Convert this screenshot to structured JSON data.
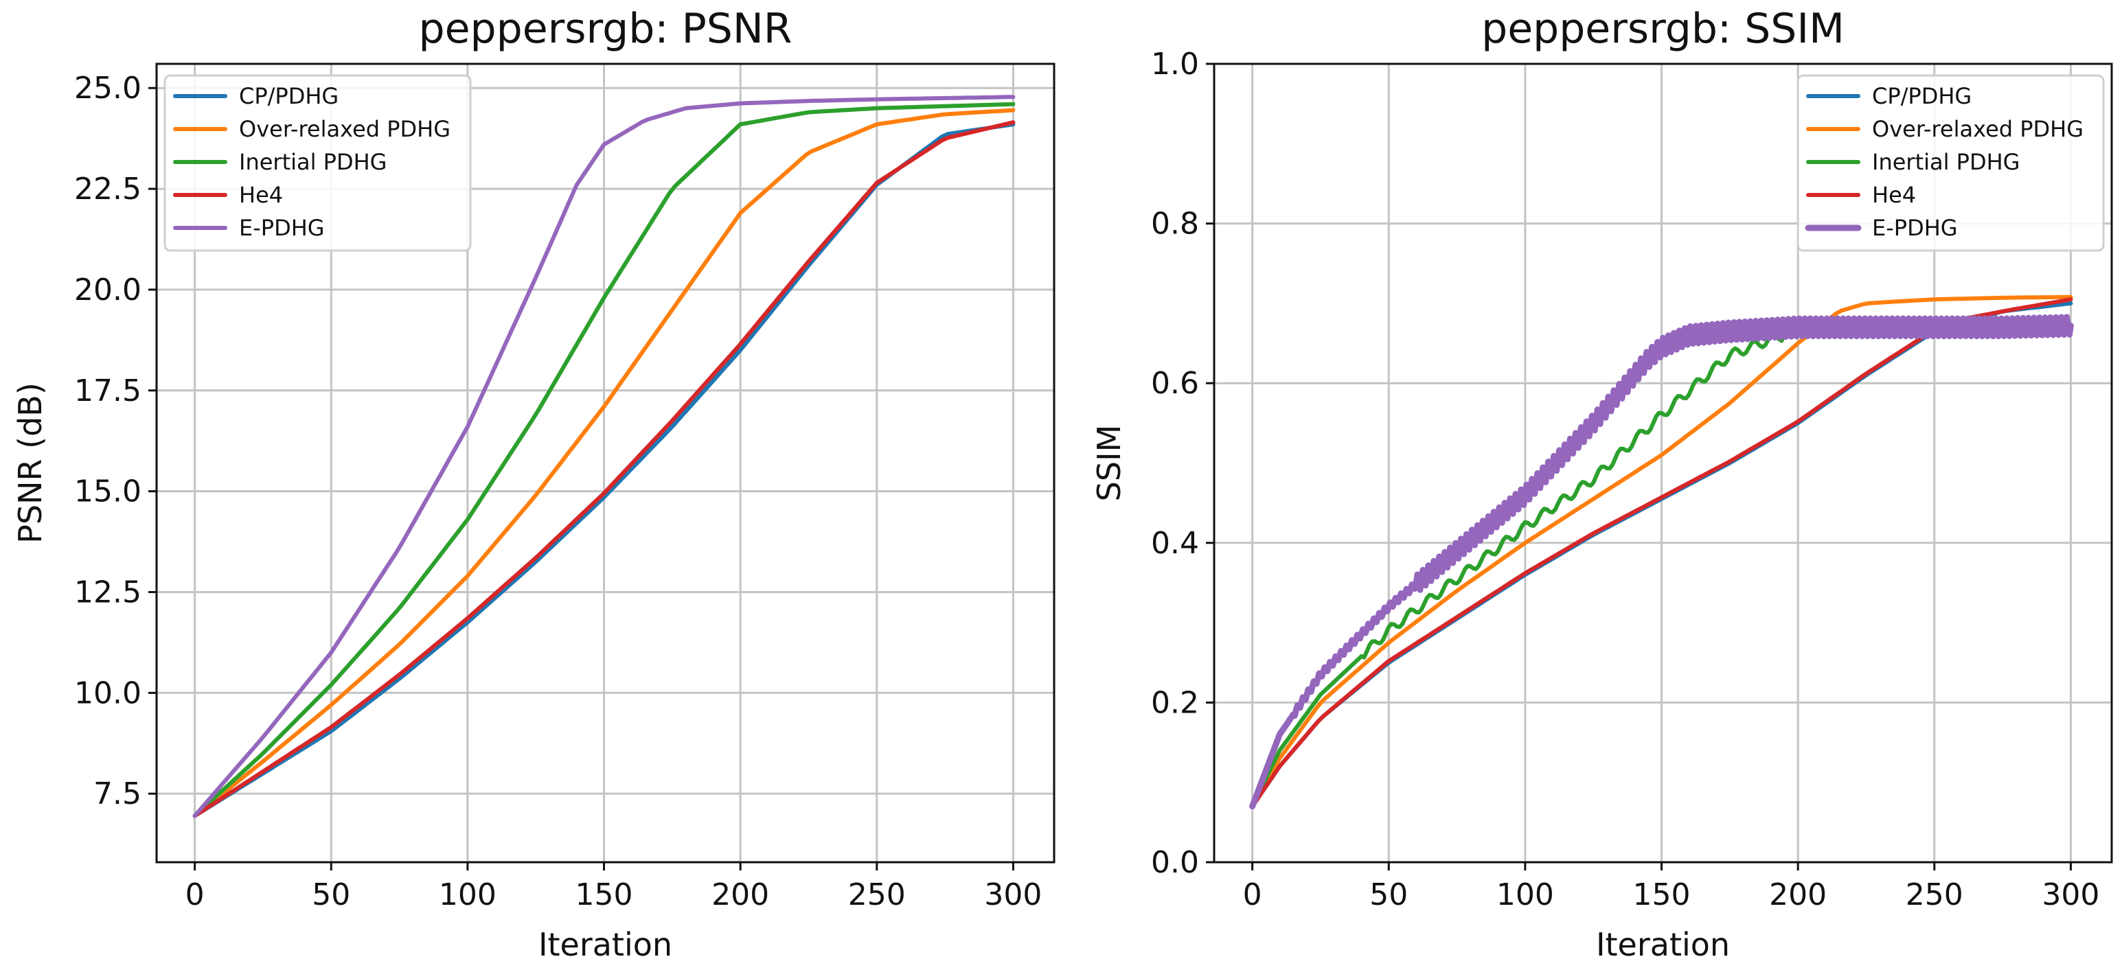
{
  "chart_data": [
    {
      "type": "line",
      "title": "peppersrgb: PSNR",
      "xlabel": "Iteration",
      "ylabel": "PSNR (dB)",
      "xlim": [
        -14,
        315
      ],
      "ylim": [
        5.8,
        25.6
      ],
      "xticks": [
        0,
        50,
        100,
        150,
        200,
        250,
        300
      ],
      "xtick_labels": [
        "0",
        "50",
        "100",
        "150",
        "200",
        "250",
        "300"
      ],
      "yticks": [
        7.5,
        10.0,
        12.5,
        15.0,
        17.5,
        20.0,
        22.5,
        25.0
      ],
      "ytick_labels": [
        "7.5",
        "10.0",
        "12.5",
        "15.0",
        "17.5",
        "20.0",
        "22.5",
        "25.0"
      ],
      "grid": true,
      "legend_position": "top-left",
      "series": [
        {
          "name": "CP/PDHG",
          "color": "#1f77b4",
          "x": [
            0,
            25,
            50,
            75,
            100,
            125,
            150,
            175,
            200,
            225,
            250,
            275,
            300
          ],
          "y": [
            6.95,
            8.0,
            9.05,
            10.35,
            11.75,
            13.25,
            14.85,
            16.6,
            18.5,
            20.6,
            22.6,
            23.85,
            24.1
          ]
        },
        {
          "name": "Over-relaxed PDHG",
          "color": "#ff7f0e",
          "x": [
            0,
            25,
            50,
            75,
            100,
            125,
            150,
            175,
            200,
            225,
            250,
            275,
            300
          ],
          "y": [
            6.95,
            8.3,
            9.7,
            11.2,
            12.9,
            14.9,
            17.1,
            19.5,
            21.9,
            23.4,
            24.1,
            24.35,
            24.45
          ]
        },
        {
          "name": "Inertial PDHG",
          "color": "#2ca02c",
          "x": [
            0,
            25,
            50,
            75,
            100,
            125,
            150,
            175,
            200,
            225,
            250,
            275,
            300
          ],
          "y": [
            6.95,
            8.5,
            10.2,
            12.1,
            14.3,
            16.9,
            19.8,
            22.5,
            24.1,
            24.4,
            24.5,
            24.55,
            24.6
          ]
        },
        {
          "name": "He4",
          "color": "#d62728",
          "x": [
            0,
            25,
            50,
            75,
            100,
            125,
            150,
            175,
            200,
            225,
            250,
            275,
            300
          ],
          "y": [
            6.95,
            8.05,
            9.15,
            10.45,
            11.85,
            13.35,
            14.95,
            16.75,
            18.65,
            20.7,
            22.65,
            23.75,
            24.15
          ]
        },
        {
          "name": "E-PDHG",
          "color": "#9467bd",
          "x": [
            0,
            25,
            50,
            75,
            100,
            125,
            140,
            150,
            165,
            180,
            200,
            225,
            250,
            275,
            300
          ],
          "y": [
            6.95,
            8.9,
            11.0,
            13.6,
            16.6,
            20.3,
            22.6,
            23.6,
            24.2,
            24.5,
            24.62,
            24.68,
            24.72,
            24.75,
            24.78
          ]
        }
      ]
    },
    {
      "type": "line",
      "title": "peppersrgb: SSIM",
      "xlabel": "Iteration",
      "ylabel": "SSIM",
      "xlim": [
        -14,
        315
      ],
      "ylim": [
        0.0,
        1.0
      ],
      "xticks": [
        0,
        50,
        100,
        150,
        200,
        250,
        300
      ],
      "xtick_labels": [
        "0",
        "50",
        "100",
        "150",
        "200",
        "250",
        "300"
      ],
      "yticks": [
        0.0,
        0.2,
        0.4,
        0.6,
        0.8,
        1.0
      ],
      "ytick_labels": [
        "0.0",
        "0.2",
        "0.4",
        "0.6",
        "0.8",
        "1.0"
      ],
      "grid": true,
      "legend_position": "top-right",
      "series": [
        {
          "name": "CP/PDHG",
          "color": "#1f77b4",
          "x": [
            0,
            10,
            25,
            50,
            75,
            100,
            125,
            150,
            175,
            200,
            225,
            250,
            275,
            300
          ],
          "y": [
            0.07,
            0.12,
            0.18,
            0.25,
            0.305,
            0.36,
            0.41,
            0.455,
            0.5,
            0.55,
            0.61,
            0.665,
            0.69,
            0.7
          ]
        },
        {
          "name": "Over-relaxed PDHG",
          "color": "#ff7f0e",
          "x": [
            0,
            10,
            25,
            50,
            75,
            100,
            125,
            150,
            175,
            200,
            215,
            225,
            250,
            275,
            300
          ],
          "y": [
            0.07,
            0.13,
            0.2,
            0.275,
            0.34,
            0.4,
            0.455,
            0.51,
            0.575,
            0.65,
            0.69,
            0.7,
            0.705,
            0.707,
            0.708
          ]
        },
        {
          "name": "Inertial PDHG",
          "color": "#2ca02c",
          "x": [
            0,
            10,
            25,
            50,
            75,
            100,
            125,
            150,
            175,
            190,
            200,
            225,
            250,
            275,
            300
          ],
          "y": [
            0.07,
            0.14,
            0.21,
            0.29,
            0.355,
            0.42,
            0.48,
            0.56,
            0.635,
            0.655,
            0.665,
            0.668,
            0.67,
            0.67,
            0.67
          ]
        },
        {
          "name": "He4",
          "color": "#d62728",
          "x": [
            0,
            10,
            25,
            50,
            75,
            100,
            125,
            150,
            175,
            200,
            225,
            250,
            260,
            275,
            300
          ],
          "y": [
            0.07,
            0.12,
            0.18,
            0.252,
            0.307,
            0.362,
            0.412,
            0.457,
            0.502,
            0.552,
            0.612,
            0.667,
            0.68,
            0.69,
            0.705
          ]
        },
        {
          "name": "E-PDHG",
          "color": "#9467bd",
          "x": [
            0,
            10,
            25,
            50,
            75,
            100,
            125,
            145,
            150,
            160,
            175,
            200,
            225,
            250,
            275,
            300
          ],
          "y": [
            0.07,
            0.16,
            0.235,
            0.32,
            0.39,
            0.46,
            0.55,
            0.63,
            0.645,
            0.66,
            0.665,
            0.67,
            0.67,
            0.67,
            0.67,
            0.672
          ],
          "oscillating": true
        }
      ]
    }
  ]
}
